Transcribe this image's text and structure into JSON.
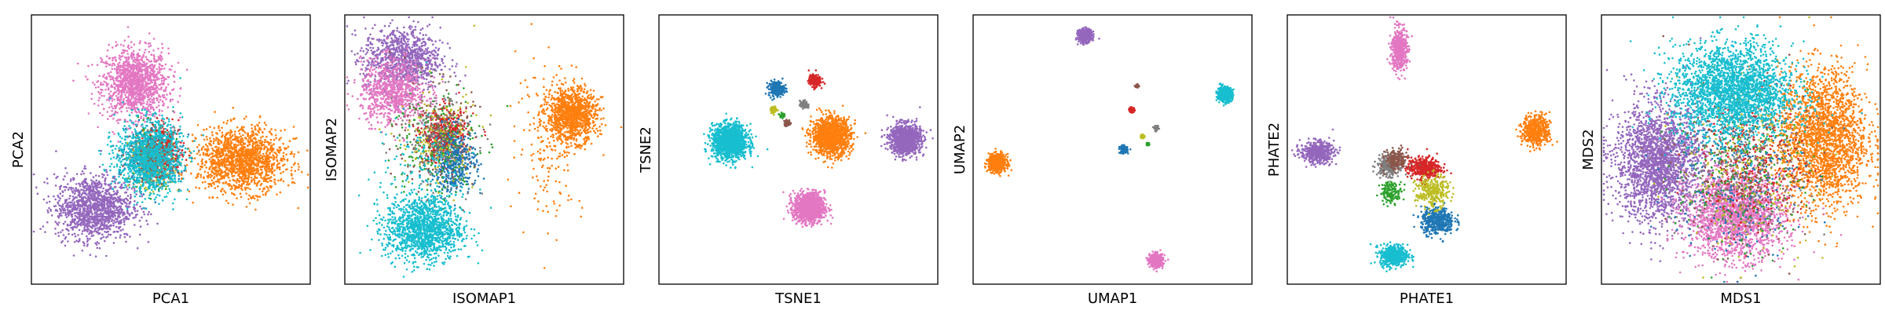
{
  "chart_data": [
    {
      "type": "scatter",
      "xlabel": "PCA1",
      "ylabel": "PCA2",
      "xlim": [
        0,
        1
      ],
      "ylim": [
        0,
        1
      ],
      "grid": false,
      "ticks": false,
      "clusters": [
        {
          "color": "#e377c2",
          "cx": 0.37,
          "cy": 0.75,
          "sx": 0.06,
          "sy": 0.065,
          "n": 1300
        },
        {
          "color": "#9467bd",
          "cx": 0.22,
          "cy": 0.28,
          "sx": 0.07,
          "sy": 0.06,
          "n": 1300
        },
        {
          "color": "#ff7f0e",
          "cx": 0.76,
          "cy": 0.46,
          "sx": 0.08,
          "sy": 0.06,
          "n": 1500
        },
        {
          "color": "#2ca02c",
          "cx": 0.44,
          "cy": 0.48,
          "sx": 0.04,
          "sy": 0.05,
          "n": 250
        },
        {
          "color": "#1f77b4",
          "cx": 0.44,
          "cy": 0.47,
          "sx": 0.05,
          "sy": 0.05,
          "n": 300
        },
        {
          "color": "#7f7f7f",
          "cx": 0.46,
          "cy": 0.48,
          "sx": 0.04,
          "sy": 0.05,
          "n": 200
        },
        {
          "color": "#bcbd22",
          "cx": 0.43,
          "cy": 0.45,
          "sx": 0.04,
          "sy": 0.05,
          "n": 200
        },
        {
          "color": "#d62728",
          "cx": 0.47,
          "cy": 0.49,
          "sx": 0.04,
          "sy": 0.05,
          "n": 250
        },
        {
          "color": "#8c564b",
          "cx": 0.42,
          "cy": 0.47,
          "sx": 0.04,
          "sy": 0.05,
          "n": 150
        },
        {
          "color": "#17becf",
          "cx": 0.42,
          "cy": 0.47,
          "sx": 0.06,
          "sy": 0.07,
          "n": 1100
        }
      ]
    },
    {
      "type": "scatter",
      "xlabel": "ISOMAP1",
      "ylabel": "ISOMAP2",
      "xlim": [
        0,
        1
      ],
      "ylim": [
        0,
        1
      ],
      "grid": false,
      "ticks": false,
      "clusters": [
        {
          "color": "#9467bd",
          "cx": 0.2,
          "cy": 0.84,
          "sx": 0.07,
          "sy": 0.06,
          "n": 1000
        },
        {
          "color": "#e377c2",
          "cx": 0.17,
          "cy": 0.72,
          "sx": 0.06,
          "sy": 0.06,
          "n": 800
        },
        {
          "color": "#ff7f0e",
          "cx": 0.82,
          "cy": 0.63,
          "sx": 0.045,
          "sy": 0.05,
          "n": 1100
        },
        {
          "color": "#ff7f0e",
          "cx": 0.74,
          "cy": 0.55,
          "sx": 0.06,
          "sy": 0.15,
          "n": 200
        },
        {
          "color": "#d62728",
          "cx": 0.36,
          "cy": 0.55,
          "sx": 0.04,
          "sy": 0.05,
          "n": 500
        },
        {
          "color": "#1f77b4",
          "cx": 0.39,
          "cy": 0.46,
          "sx": 0.04,
          "sy": 0.06,
          "n": 500
        },
        {
          "color": "#2ca02c",
          "cx": 0.32,
          "cy": 0.52,
          "sx": 0.08,
          "sy": 0.12,
          "n": 200
        },
        {
          "color": "#8c564b",
          "cx": 0.32,
          "cy": 0.55,
          "sx": 0.07,
          "sy": 0.1,
          "n": 150
        },
        {
          "color": "#bcbd22",
          "cx": 0.33,
          "cy": 0.54,
          "sx": 0.07,
          "sy": 0.1,
          "n": 150
        },
        {
          "color": "#7f7f7f",
          "cx": 0.33,
          "cy": 0.56,
          "sx": 0.07,
          "sy": 0.1,
          "n": 150
        },
        {
          "color": "#17becf",
          "cx": 0.28,
          "cy": 0.2,
          "sx": 0.07,
          "sy": 0.06,
          "n": 1300
        },
        {
          "color": "#17becf",
          "cx": 0.26,
          "cy": 0.4,
          "sx": 0.08,
          "sy": 0.12,
          "n": 150
        }
      ]
    },
    {
      "type": "scatter",
      "xlabel": "TSNE1",
      "ylabel": "TSNE2",
      "xlim": [
        0,
        1
      ],
      "ylim": [
        0,
        1
      ],
      "grid": false,
      "ticks": false,
      "clusters": [
        {
          "color": "#17becf",
          "cx": 0.25,
          "cy": 0.53,
          "sx": 0.032,
          "sy": 0.032,
          "n": 1300
        },
        {
          "color": "#ff7f0e",
          "cx": 0.62,
          "cy": 0.55,
          "sx": 0.035,
          "sy": 0.035,
          "n": 1300
        },
        {
          "color": "#9467bd",
          "cx": 0.89,
          "cy": 0.54,
          "sx": 0.028,
          "sy": 0.028,
          "n": 1100
        },
        {
          "color": "#e377c2",
          "cx": 0.54,
          "cy": 0.28,
          "sx": 0.028,
          "sy": 0.028,
          "n": 1100
        },
        {
          "color": "#1f77b4",
          "cx": 0.42,
          "cy": 0.73,
          "sx": 0.014,
          "sy": 0.014,
          "n": 250
        },
        {
          "color": "#d62728",
          "cx": 0.56,
          "cy": 0.76,
          "sx": 0.011,
          "sy": 0.011,
          "n": 220
        },
        {
          "color": "#7f7f7f",
          "cx": 0.52,
          "cy": 0.67,
          "sx": 0.007,
          "sy": 0.007,
          "n": 90
        },
        {
          "color": "#bcbd22",
          "cx": 0.41,
          "cy": 0.65,
          "sx": 0.006,
          "sy": 0.006,
          "n": 70
        },
        {
          "color": "#8c564b",
          "cx": 0.46,
          "cy": 0.6,
          "sx": 0.006,
          "sy": 0.006,
          "n": 60
        },
        {
          "color": "#2ca02c",
          "cx": 0.44,
          "cy": 0.63,
          "sx": 0.004,
          "sy": 0.004,
          "n": 40
        }
      ]
    },
    {
      "type": "scatter",
      "xlabel": "UMAP1",
      "ylabel": "UMAP2",
      "xlim": [
        0,
        1
      ],
      "ylim": [
        0,
        1
      ],
      "grid": false,
      "ticks": false,
      "clusters": [
        {
          "color": "#ff7f0e",
          "cx": 0.08,
          "cy": 0.45,
          "sx": 0.016,
          "sy": 0.016,
          "n": 700
        },
        {
          "color": "#9467bd",
          "cx": 0.4,
          "cy": 0.93,
          "sx": 0.012,
          "sy": 0.012,
          "n": 500
        },
        {
          "color": "#17becf",
          "cx": 0.91,
          "cy": 0.71,
          "sx": 0.013,
          "sy": 0.013,
          "n": 550
        },
        {
          "color": "#e377c2",
          "cx": 0.66,
          "cy": 0.08,
          "sx": 0.012,
          "sy": 0.012,
          "n": 500
        },
        {
          "color": "#1f77b4",
          "cx": 0.54,
          "cy": 0.5,
          "sx": 0.007,
          "sy": 0.007,
          "n": 150
        },
        {
          "color": "#d62728",
          "cx": 0.57,
          "cy": 0.65,
          "sx": 0.005,
          "sy": 0.005,
          "n": 80
        },
        {
          "color": "#8c564b",
          "cx": 0.59,
          "cy": 0.74,
          "sx": 0.003,
          "sy": 0.003,
          "n": 40
        },
        {
          "color": "#bcbd22",
          "cx": 0.61,
          "cy": 0.55,
          "sx": 0.004,
          "sy": 0.004,
          "n": 50
        },
        {
          "color": "#7f7f7f",
          "cx": 0.66,
          "cy": 0.58,
          "sx": 0.004,
          "sy": 0.004,
          "n": 50
        },
        {
          "color": "#2ca02c",
          "cx": 0.63,
          "cy": 0.52,
          "sx": 0.003,
          "sy": 0.003,
          "n": 30
        }
      ]
    },
    {
      "type": "scatter",
      "xlabel": "PHATE1",
      "ylabel": "PHATE2",
      "xlim": [
        0,
        1
      ],
      "ylim": [
        0,
        1
      ],
      "grid": false,
      "ticks": false,
      "clusters": [
        {
          "color": "#e377c2",
          "cx": 0.4,
          "cy": 0.88,
          "sx": 0.014,
          "sy": 0.04,
          "n": 500
        },
        {
          "color": "#9467bd",
          "cx": 0.1,
          "cy": 0.49,
          "sx": 0.03,
          "sy": 0.02,
          "n": 500
        },
        {
          "color": "#ff7f0e",
          "cx": 0.9,
          "cy": 0.57,
          "sx": 0.025,
          "sy": 0.03,
          "n": 500
        },
        {
          "color": "#17becf",
          "cx": 0.38,
          "cy": 0.1,
          "sx": 0.025,
          "sy": 0.02,
          "n": 500
        },
        {
          "color": "#d62728",
          "cx": 0.49,
          "cy": 0.43,
          "sx": 0.03,
          "sy": 0.02,
          "n": 450
        },
        {
          "color": "#1f77b4",
          "cx": 0.54,
          "cy": 0.23,
          "sx": 0.03,
          "sy": 0.025,
          "n": 450
        },
        {
          "color": "#7f7f7f",
          "cx": 0.36,
          "cy": 0.44,
          "sx": 0.02,
          "sy": 0.02,
          "n": 250
        },
        {
          "color": "#8c564b",
          "cx": 0.39,
          "cy": 0.46,
          "sx": 0.02,
          "sy": 0.02,
          "n": 200
        },
        {
          "color": "#bcbd22",
          "cx": 0.52,
          "cy": 0.34,
          "sx": 0.03,
          "sy": 0.03,
          "n": 300
        },
        {
          "color": "#2ca02c",
          "cx": 0.37,
          "cy": 0.34,
          "sx": 0.02,
          "sy": 0.02,
          "n": 150
        }
      ]
    },
    {
      "type": "scatter",
      "xlabel": "MDS1",
      "ylabel": "MDS2",
      "xlim": [
        0,
        1
      ],
      "ylim": [
        0,
        1
      ],
      "grid": false,
      "ticks": false,
      "clusters": [
        {
          "color": "#9467bd",
          "cx": 0.2,
          "cy": 0.45,
          "sx": 0.08,
          "sy": 0.11,
          "n": 2200
        },
        {
          "color": "#ff7f0e",
          "cx": 0.8,
          "cy": 0.54,
          "sx": 0.08,
          "sy": 0.13,
          "n": 2200
        },
        {
          "color": "#e377c2",
          "cx": 0.48,
          "cy": 0.25,
          "sx": 0.09,
          "sy": 0.08,
          "n": 2000
        },
        {
          "color": "#d62728",
          "cx": 0.55,
          "cy": 0.45,
          "sx": 0.09,
          "sy": 0.12,
          "n": 350
        },
        {
          "color": "#1f77b4",
          "cx": 0.48,
          "cy": 0.4,
          "sx": 0.12,
          "sy": 0.15,
          "n": 300
        },
        {
          "color": "#8c564b",
          "cx": 0.5,
          "cy": 0.45,
          "sx": 0.12,
          "sy": 0.15,
          "n": 250
        },
        {
          "color": "#bcbd22",
          "cx": 0.52,
          "cy": 0.43,
          "sx": 0.12,
          "sy": 0.15,
          "n": 250
        },
        {
          "color": "#2ca02c",
          "cx": 0.5,
          "cy": 0.4,
          "sx": 0.12,
          "sy": 0.15,
          "n": 200
        },
        {
          "color": "#7f7f7f",
          "cx": 0.52,
          "cy": 0.44,
          "sx": 0.12,
          "sy": 0.15,
          "n": 200
        },
        {
          "color": "#17becf",
          "cx": 0.47,
          "cy": 0.72,
          "sx": 0.11,
          "sy": 0.09,
          "n": 2400
        }
      ]
    }
  ]
}
